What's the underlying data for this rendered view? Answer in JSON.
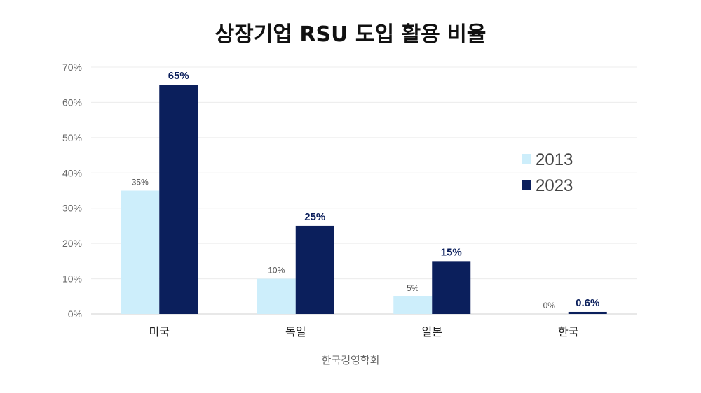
{
  "chart_data": {
    "type": "bar",
    "title": "상장기업 RSU 도입 활용 비율",
    "source": "한국경영학회",
    "categories": [
      "미국",
      "독일",
      "일본",
      "한국"
    ],
    "series": [
      {
        "name": "2013",
        "values": [
          35,
          10,
          5,
          0
        ],
        "labels": [
          "35%",
          "10%",
          "5%",
          "0%"
        ],
        "color": "#cdeefb"
      },
      {
        "name": "2023",
        "values": [
          65,
          25,
          15,
          0.6
        ],
        "labels": [
          "65%",
          "25%",
          "15%",
          "0.6%"
        ],
        "color": "#0b1f5c"
      }
    ],
    "ylim": [
      0,
      70
    ],
    "yticks": [
      "0%",
      "10%",
      "20%",
      "30%",
      "40%",
      "50%",
      "60%",
      "70%"
    ],
    "grid": true,
    "legend_position": "right"
  }
}
